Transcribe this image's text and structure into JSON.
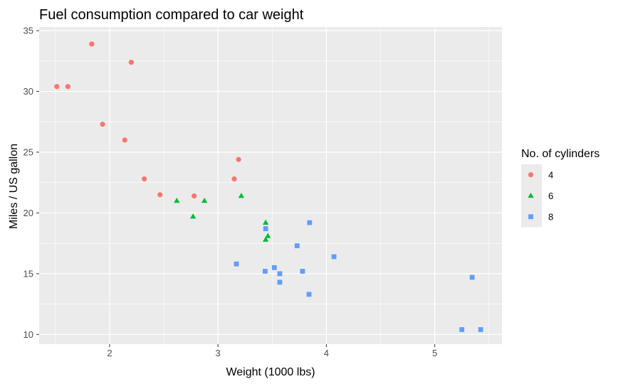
{
  "chart_data": {
    "type": "scatter",
    "title": "Fuel consumption compared to car weight",
    "xlabel": "Weight (1000 lbs)",
    "ylabel": "Miles / US gallon",
    "xlim": [
      1.35,
      5.62
    ],
    "ylim": [
      9.2,
      35.3
    ],
    "x_ticks": [
      2,
      3,
      4,
      5
    ],
    "y_ticks": [
      10,
      15,
      20,
      25,
      30,
      35
    ],
    "grid": true,
    "background_color": "#ebebeb",
    "grid_color": "#ffffff",
    "legend": {
      "title": "No. of cylinders",
      "position": "right",
      "entries": [
        {
          "label": "4",
          "shape": "circle",
          "color": "#f8766d"
        },
        {
          "label": "6",
          "shape": "triangle",
          "color": "#00ba38"
        },
        {
          "label": "8",
          "shape": "square",
          "color": "#619cff"
        }
      ]
    },
    "series": [
      {
        "name": "4",
        "shape": "circle",
        "color": "#f8766d",
        "points": [
          {
            "x": 1.513,
            "y": 30.4
          },
          {
            "x": 1.615,
            "y": 30.4
          },
          {
            "x": 1.835,
            "y": 33.9
          },
          {
            "x": 1.935,
            "y": 27.3
          },
          {
            "x": 2.14,
            "y": 26.0
          },
          {
            "x": 2.2,
            "y": 32.4
          },
          {
            "x": 2.32,
            "y": 22.8
          },
          {
            "x": 2.465,
            "y": 21.5
          },
          {
            "x": 2.78,
            "y": 21.4
          },
          {
            "x": 3.15,
            "y": 22.8
          },
          {
            "x": 3.19,
            "y": 24.4
          }
        ]
      },
      {
        "name": "6",
        "shape": "triangle",
        "color": "#00ba38",
        "points": [
          {
            "x": 2.62,
            "y": 21.0
          },
          {
            "x": 2.77,
            "y": 19.7
          },
          {
            "x": 2.875,
            "y": 21.0
          },
          {
            "x": 3.215,
            "y": 21.4
          },
          {
            "x": 3.44,
            "y": 19.2
          },
          {
            "x": 3.44,
            "y": 17.8
          },
          {
            "x": 3.46,
            "y": 18.1
          }
        ]
      },
      {
        "name": "8",
        "shape": "square",
        "color": "#619cff",
        "points": [
          {
            "x": 3.17,
            "y": 15.8
          },
          {
            "x": 3.435,
            "y": 15.2
          },
          {
            "x": 3.44,
            "y": 18.7
          },
          {
            "x": 3.52,
            "y": 15.5
          },
          {
            "x": 3.57,
            "y": 14.3
          },
          {
            "x": 3.57,
            "y": 15.0
          },
          {
            "x": 3.73,
            "y": 17.3
          },
          {
            "x": 3.78,
            "y": 15.2
          },
          {
            "x": 3.84,
            "y": 13.3
          },
          {
            "x": 3.845,
            "y": 19.2
          },
          {
            "x": 4.07,
            "y": 16.4
          },
          {
            "x": 5.25,
            "y": 10.4
          },
          {
            "x": 5.345,
            "y": 14.7
          },
          {
            "x": 5.424,
            "y": 10.4
          }
        ]
      }
    ]
  }
}
